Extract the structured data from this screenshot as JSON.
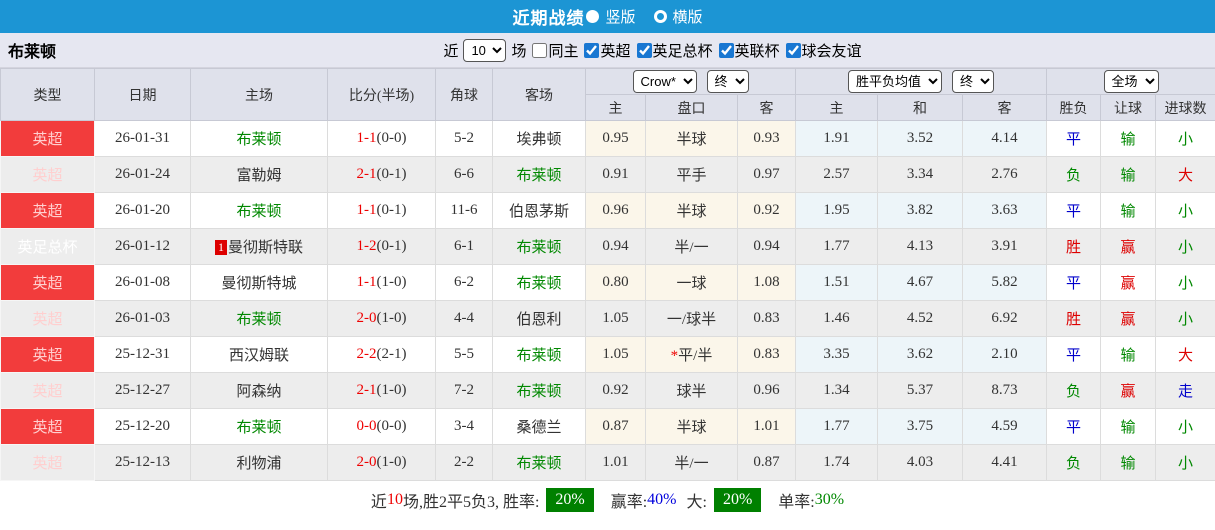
{
  "topbar": {
    "title": "近期战绩",
    "options": [
      {
        "label": "竖版",
        "selected": true
      },
      {
        "label": "横版",
        "selected": false
      }
    ]
  },
  "toolbar": {
    "team": "布莱顿",
    "near_label": "近",
    "count_value": "10",
    "unit_label": "场",
    "same_home": {
      "label": "同主",
      "checked": false
    },
    "filters": [
      {
        "label": "英超",
        "checked": true
      },
      {
        "label": "英足总杯",
        "checked": true
      },
      {
        "label": "英联杯",
        "checked": true
      },
      {
        "label": "球会友谊",
        "checked": true
      }
    ]
  },
  "table": {
    "main_columns": [
      "类型",
      "日期",
      "主场",
      "比分(半场)",
      "角球",
      "客场"
    ],
    "sub_columns": [
      "主",
      "盘口",
      "客",
      "主",
      "和",
      "客",
      "胜负",
      "让球",
      "进球数"
    ],
    "selectors": {
      "bookmaker": "Crow*",
      "bookmaker_state": "终",
      "avg": "胜平负均值",
      "avg_state": "终",
      "scope": "全场"
    },
    "rows": [
      {
        "type": "英超",
        "type_class": "league",
        "date": "26-01-31",
        "home": "布莱顿",
        "home_green": true,
        "home_badge": "",
        "score": "1-1",
        "half": "(0-0)",
        "corner": "5-2",
        "away": "埃弗顿",
        "away_green": false,
        "asia_home": "0.95",
        "handicap": "半球",
        "handicap_star": false,
        "asia_away": "0.93",
        "eu_home": "1.91",
        "eu_draw": "3.52",
        "eu_away": "4.14",
        "result": "平",
        "result_color": "blue",
        "let": "输",
        "let_color": "green",
        "goals": "小",
        "goals_color": "green"
      },
      {
        "type": "英超",
        "type_class": "league",
        "date": "26-01-24",
        "home": "富勒姆",
        "home_green": false,
        "home_badge": "",
        "score": "2-1",
        "half": "(0-1)",
        "corner": "6-6",
        "away": "布莱顿",
        "away_green": true,
        "asia_home": "0.91",
        "handicap": "平手",
        "handicap_star": false,
        "asia_away": "0.97",
        "eu_home": "2.57",
        "eu_draw": "3.34",
        "eu_away": "2.76",
        "result": "负",
        "result_color": "green",
        "let": "输",
        "let_color": "green",
        "goals": "大",
        "goals_color": "red"
      },
      {
        "type": "英超",
        "type_class": "league",
        "date": "26-01-20",
        "home": "布莱顿",
        "home_green": true,
        "home_badge": "",
        "score": "1-1",
        "half": "(0-1)",
        "corner": "11-6",
        "away": "伯恩茅斯",
        "away_green": false,
        "asia_home": "0.96",
        "handicap": "半球",
        "handicap_star": false,
        "asia_away": "0.92",
        "eu_home": "1.95",
        "eu_draw": "3.82",
        "eu_away": "3.63",
        "result": "平",
        "result_color": "blue",
        "let": "输",
        "let_color": "green",
        "goals": "小",
        "goals_color": "green"
      },
      {
        "type": "英足总杯",
        "type_class": "cup",
        "date": "26-01-12",
        "home": "曼彻斯特联",
        "home_green": false,
        "home_badge": "1",
        "score": "1-2",
        "half": "(0-1)",
        "corner": "6-1",
        "away": "布莱顿",
        "away_green": true,
        "asia_home": "0.94",
        "handicap": "半/一",
        "handicap_star": false,
        "asia_away": "0.94",
        "eu_home": "1.77",
        "eu_draw": "4.13",
        "eu_away": "3.91",
        "result": "胜",
        "result_color": "red",
        "let": "赢",
        "let_color": "red",
        "goals": "小",
        "goals_color": "green"
      },
      {
        "type": "英超",
        "type_class": "league",
        "date": "26-01-08",
        "home": "曼彻斯特城",
        "home_green": false,
        "home_badge": "",
        "score": "1-1",
        "half": "(1-0)",
        "corner": "6-2",
        "away": "布莱顿",
        "away_green": true,
        "asia_home": "0.80",
        "handicap": "一球",
        "handicap_star": false,
        "asia_away": "1.08",
        "eu_home": "1.51",
        "eu_draw": "4.67",
        "eu_away": "5.82",
        "result": "平",
        "result_color": "blue",
        "let": "赢",
        "let_color": "red",
        "goals": "小",
        "goals_color": "green"
      },
      {
        "type": "英超",
        "type_class": "league",
        "date": "26-01-03",
        "home": "布莱顿",
        "home_green": true,
        "home_badge": "",
        "score": "2-0",
        "half": "(1-0)",
        "corner": "4-4",
        "away": "伯恩利",
        "away_green": false,
        "asia_home": "1.05",
        "handicap": "一/球半",
        "handicap_star": false,
        "asia_away": "0.83",
        "eu_home": "1.46",
        "eu_draw": "4.52",
        "eu_away": "6.92",
        "result": "胜",
        "result_color": "red",
        "let": "赢",
        "let_color": "red",
        "goals": "小",
        "goals_color": "green"
      },
      {
        "type": "英超",
        "type_class": "league",
        "date": "25-12-31",
        "home": "西汉姆联",
        "home_green": false,
        "home_badge": "",
        "score": "2-2",
        "half": "(2-1)",
        "corner": "5-5",
        "away": "布莱顿",
        "away_green": true,
        "asia_home": "1.05",
        "handicap": "平/半",
        "handicap_star": true,
        "asia_away": "0.83",
        "eu_home": "3.35",
        "eu_draw": "3.62",
        "eu_away": "2.10",
        "result": "平",
        "result_color": "blue",
        "let": "输",
        "let_color": "green",
        "goals": "大",
        "goals_color": "red"
      },
      {
        "type": "英超",
        "type_class": "league",
        "date": "25-12-27",
        "home": "阿森纳",
        "home_green": false,
        "home_badge": "",
        "score": "2-1",
        "half": "(1-0)",
        "corner": "7-2",
        "away": "布莱顿",
        "away_green": true,
        "asia_home": "0.92",
        "handicap": "球半",
        "handicap_star": false,
        "asia_away": "0.96",
        "eu_home": "1.34",
        "eu_draw": "5.37",
        "eu_away": "8.73",
        "result": "负",
        "result_color": "green",
        "let": "赢",
        "let_color": "red",
        "goals": "走",
        "goals_color": "blue"
      },
      {
        "type": "英超",
        "type_class": "league",
        "date": "25-12-20",
        "home": "布莱顿",
        "home_green": true,
        "home_badge": "",
        "score": "0-0",
        "half": "(0-0)",
        "corner": "3-4",
        "away": "桑德兰",
        "away_green": false,
        "asia_home": "0.87",
        "handicap": "半球",
        "handicap_star": false,
        "asia_away": "1.01",
        "eu_home": "1.77",
        "eu_draw": "3.75",
        "eu_away": "4.59",
        "result": "平",
        "result_color": "blue",
        "let": "输",
        "let_color": "green",
        "goals": "小",
        "goals_color": "green"
      },
      {
        "type": "英超",
        "type_class": "league",
        "date": "25-12-13",
        "home": "利物浦",
        "home_green": false,
        "home_badge": "",
        "score": "2-0",
        "half": "(1-0)",
        "corner": "2-2",
        "away": "布莱顿",
        "away_green": true,
        "asia_home": "1.01",
        "handicap": "半/一",
        "handicap_star": false,
        "asia_away": "0.87",
        "eu_home": "1.74",
        "eu_draw": "4.03",
        "eu_away": "4.41",
        "result": "负",
        "result_color": "green",
        "let": "输",
        "let_color": "green",
        "goals": "小",
        "goals_color": "green"
      }
    ]
  },
  "footer": {
    "near_label": "近",
    "count": "10",
    "record": "场,胜2平5负3, 胜率:",
    "win_rate": "20%",
    "win_odds_label": "赢率:",
    "win_odds_value": "40%",
    "big_label": "大:",
    "big_value": "20%",
    "single_label": "单率:",
    "single_value": "30%"
  },
  "colors": {
    "topbar_bg": "#1c95d4",
    "league_red_bg": "#f23c3c",
    "cup_blue_bg": "#0101cd",
    "result_green": "#008800",
    "result_red": "#dd0000",
    "result_blue": "#0000cc",
    "score_red": "#ee0000",
    "badge_green_bg": "#008000",
    "toolbar_bg": "#e6e7f1",
    "header_bg": "#dfe1eb"
  }
}
